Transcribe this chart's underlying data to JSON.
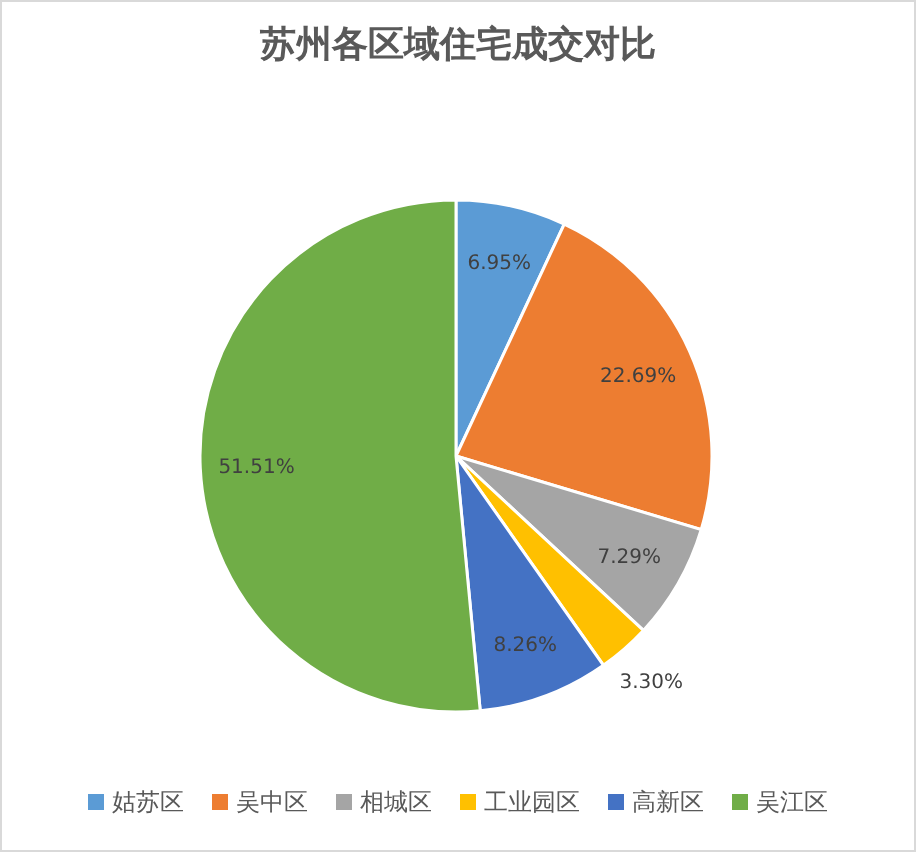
{
  "chart_data": {
    "type": "pie",
    "title": "苏州各区域住宅成交对比",
    "categories": [
      "姑苏区",
      "吴中区",
      "相城区",
      "工业园区",
      "高新区",
      "吴江区"
    ],
    "values": [
      6.95,
      22.69,
      7.29,
      3.3,
      8.26,
      51.51
    ],
    "value_labels": [
      "6.95%",
      "22.69%",
      "7.29%",
      "3.30%",
      "8.26%",
      "51.51%"
    ],
    "colors": [
      "#5b9bd5",
      "#ed7d31",
      "#a5a5a5",
      "#ffc000",
      "#4472c4",
      "#70ad47"
    ],
    "legend": "bottom"
  }
}
